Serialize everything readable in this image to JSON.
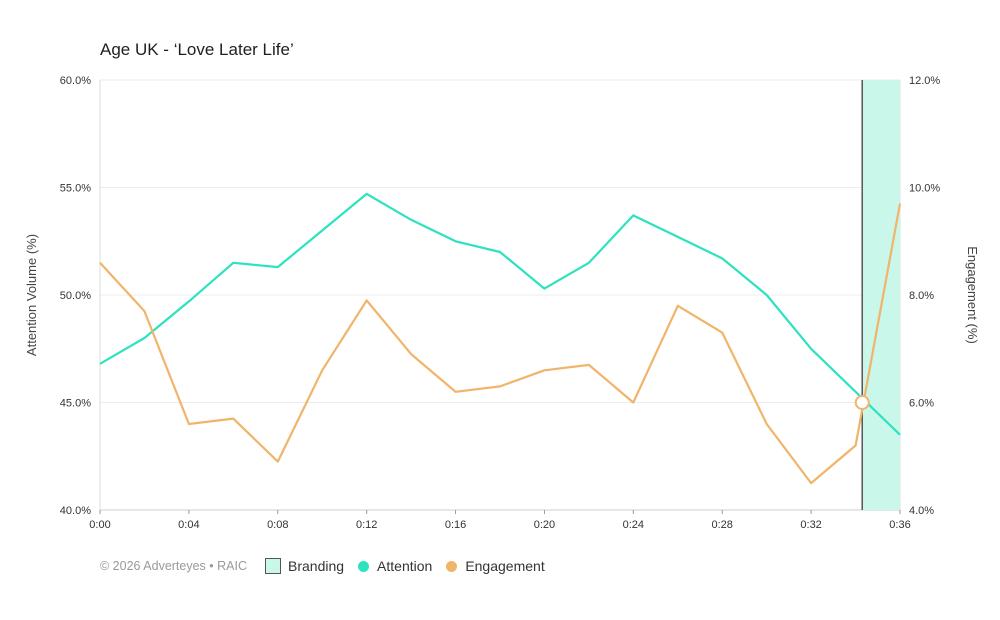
{
  "chart_data": {
    "type": "line",
    "title": "Age UK - ‘Love Later Life’",
    "ylabel_left": "Attention Volume (%)",
    "ylabel_right": "Engagement (%)",
    "x_ticks": [
      "0:00",
      "0:04",
      "0:08",
      "0:12",
      "0:16",
      "0:20",
      "0:24",
      "0:28",
      "0:32",
      "0:36"
    ],
    "x_seconds": [
      0,
      2,
      4,
      6,
      8,
      10,
      12,
      14,
      16,
      18,
      20,
      22,
      24,
      26,
      28,
      30,
      32,
      34,
      36
    ],
    "ylim_left": [
      40,
      60
    ],
    "ylim_right": [
      4,
      12
    ],
    "y_ticks_left": [
      "40.0%",
      "45.0%",
      "50.0%",
      "55.0%",
      "60.0%"
    ],
    "y_ticks_right": [
      "4.0%",
      "6.0%",
      "8.0%",
      "10.0%",
      "12.0%"
    ],
    "series": [
      {
        "name": "Attention",
        "axis": "left",
        "color": "#2de2bf",
        "x": [
          0,
          2,
          4,
          6,
          8,
          10,
          12,
          14,
          16,
          18,
          20,
          22,
          24,
          26,
          28,
          30,
          32,
          34,
          36
        ],
        "values": [
          46.8,
          48.0,
          49.7,
          51.5,
          51.3,
          53.0,
          54.7,
          53.5,
          52.5,
          52.0,
          50.3,
          51.5,
          53.7,
          52.7,
          51.7,
          50.0,
          47.5,
          45.5,
          43.5
        ]
      },
      {
        "name": "Engagement",
        "axis": "right",
        "color": "#f0b46a",
        "x": [
          0,
          2,
          4,
          6,
          8,
          10,
          12,
          14,
          16,
          18,
          20,
          22,
          24,
          26,
          28,
          30,
          32,
          34,
          36
        ],
        "values": [
          8.6,
          7.7,
          5.6,
          5.7,
          4.9,
          6.6,
          7.9,
          6.9,
          6.2,
          6.3,
          6.6,
          6.7,
          6.0,
          7.8,
          7.3,
          5.6,
          4.5,
          5.2,
          9.7
        ]
      }
    ],
    "branding_region": {
      "start_s": 34.3,
      "end_s": 36,
      "color": "#c9f7ea"
    },
    "marker": {
      "x_s": 34.3,
      "left_value": 45.0
    },
    "grid": true
  },
  "footer": {
    "copyright": "© 2026 Adverteyes • RAIC",
    "legend": [
      {
        "label": "Branding",
        "kind": "box",
        "color": "#c9f7ea"
      },
      {
        "label": "Attention",
        "kind": "dot",
        "color": "#2de2bf"
      },
      {
        "label": "Engagement",
        "kind": "dot",
        "color": "#f0b46a"
      }
    ]
  }
}
